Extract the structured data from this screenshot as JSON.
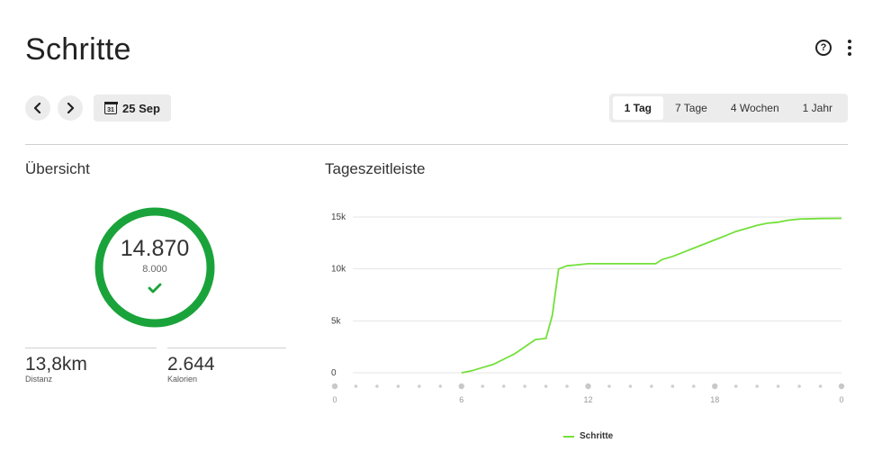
{
  "header": {
    "title": "Schritte"
  },
  "toolbar": {
    "prev_icon": "chevron-left-icon",
    "next_icon": "chevron-right-icon",
    "date_label": "25 Sep",
    "calendar_day": "31",
    "range_tabs": [
      {
        "label": "1 Tag",
        "active": true
      },
      {
        "label": "7 Tage",
        "active": false
      },
      {
        "label": "4 Wochen",
        "active": false
      },
      {
        "label": "1 Jahr",
        "active": false
      }
    ]
  },
  "overview": {
    "title": "Übersicht",
    "steps": "14.870",
    "goal": "8.000",
    "goal_reached": true,
    "ring_color": "#1aa33a",
    "stats": [
      {
        "value": "13,8km",
        "label": "Distanz"
      },
      {
        "value": "2.644",
        "label": "Kalorien"
      }
    ]
  },
  "timeline": {
    "title": "Tageszeitleiste"
  },
  "chart_data": {
    "type": "line",
    "series": [
      {
        "name": "Schritte",
        "color": "#73e03a",
        "x": [
          6,
          6.5,
          7,
          7.5,
          8,
          8.5,
          9,
          9.5,
          10,
          10.3,
          10.6,
          11,
          11.5,
          12,
          13,
          14,
          15,
          15.2,
          15.5,
          16,
          16.5,
          17,
          17.5,
          18,
          18.5,
          19,
          19.5,
          20,
          20.5,
          21,
          21.5,
          22,
          23,
          24
        ],
        "y": [
          0,
          200,
          500,
          800,
          1300,
          1800,
          2500,
          3200,
          3300,
          5500,
          10000,
          10300,
          10400,
          10500,
          10500,
          10500,
          10500,
          10500,
          10900,
          11200,
          11600,
          12000,
          12400,
          12800,
          13200,
          13600,
          13900,
          14200,
          14400,
          14500,
          14700,
          14800,
          14850,
          14870
        ]
      }
    ],
    "y_ticks": [
      "0",
      "5k",
      "10k",
      "15k"
    ],
    "x_ticks": [
      "0",
      "6",
      "12",
      "18",
      "0"
    ],
    "ylim": [
      0,
      15000
    ],
    "xlim": [
      0,
      24
    ],
    "grid": true,
    "legend": "bottom"
  }
}
